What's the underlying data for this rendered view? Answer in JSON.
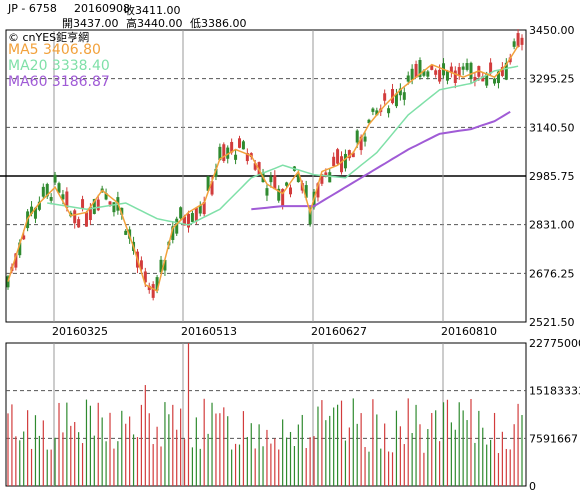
{
  "header": {
    "symbol": "JP - 6758",
    "date": "20160908",
    "close_label": "收3411.00",
    "open_label": "開3437.00",
    "high_label": "高3440.00",
    "low_label": "低3386.00"
  },
  "watermark": "© cnYES鉅亨網",
  "legend": [
    {
      "text": "MA5 3406.80",
      "color": "#f2a13b"
    },
    {
      "text": "MA20 3338.40",
      "color": "#7fe0a8"
    },
    {
      "text": "MA60 3186.87",
      "color": "#a05bd6"
    }
  ],
  "colors": {
    "up": "#d23c3c",
    "down": "#2f8a2f",
    "ma5": "#f2a13b",
    "ma20": "#7fe0a8",
    "ma60": "#a05bd6"
  },
  "chart_data": [
    {
      "type": "candlestick",
      "x_ticks": [
        "20160325",
        "20160513",
        "20160627",
        "20160810"
      ],
      "y_ticks": [
        "3450.00",
        "3295.25",
        "3140.50",
        "2985.75",
        "2831.00",
        "2676.25",
        "2521.50"
      ],
      "ylim": [
        2521.5,
        3450
      ],
      "reference_line": 2985.75,
      "anchors": {
        "ma5": [
          [
            0,
            2650
          ],
          [
            5,
            2850
          ],
          [
            8,
            2900
          ],
          [
            12,
            2950
          ],
          [
            16,
            2860
          ],
          [
            20,
            2870
          ],
          [
            24,
            2940
          ],
          [
            28,
            2900
          ],
          [
            32,
            2760
          ],
          [
            35,
            2640
          ],
          [
            38,
            2620
          ],
          [
            42,
            2820
          ],
          [
            46,
            2870
          ],
          [
            50,
            2900
          ],
          [
            54,
            3040
          ],
          [
            58,
            3070
          ],
          [
            62,
            3050
          ],
          [
            66,
            2960
          ],
          [
            70,
            2930
          ],
          [
            74,
            3000
          ],
          [
            77,
            2870
          ],
          [
            80,
            3000
          ],
          [
            84,
            3020
          ],
          [
            88,
            3060
          ],
          [
            92,
            3150
          ],
          [
            96,
            3210
          ],
          [
            100,
            3260
          ],
          [
            104,
            3300
          ],
          [
            108,
            3340
          ],
          [
            112,
            3320
          ],
          [
            116,
            3300
          ],
          [
            120,
            3320
          ],
          [
            124,
            3300
          ],
          [
            127,
            3340
          ],
          [
            130,
            3400
          ]
        ],
        "ma20": [
          [
            10,
            2900
          ],
          [
            20,
            2880
          ],
          [
            30,
            2900
          ],
          [
            38,
            2850
          ],
          [
            46,
            2830
          ],
          [
            54,
            2880
          ],
          [
            62,
            2980
          ],
          [
            70,
            3020
          ],
          [
            78,
            2990
          ],
          [
            86,
            2980
          ],
          [
            94,
            3060
          ],
          [
            102,
            3180
          ],
          [
            110,
            3260
          ],
          [
            118,
            3280
          ],
          [
            124,
            3320
          ],
          [
            130,
            3335
          ]
        ],
        "ma60": [
          [
            62,
            2880
          ],
          [
            70,
            2890
          ],
          [
            78,
            2890
          ],
          [
            86,
            2950
          ],
          [
            94,
            3010
          ],
          [
            102,
            3070
          ],
          [
            110,
            3120
          ],
          [
            118,
            3135
          ],
          [
            124,
            3160
          ],
          [
            128,
            3190
          ]
        ]
      }
    },
    {
      "type": "bar",
      "series": "volume",
      "y_ticks": [
        "22775000",
        "15183333",
        "7591667",
        "0"
      ],
      "ylim": [
        0,
        22775000
      ],
      "peak": 22775000,
      "typical_range": [
        5000000,
        14000000
      ]
    }
  ]
}
